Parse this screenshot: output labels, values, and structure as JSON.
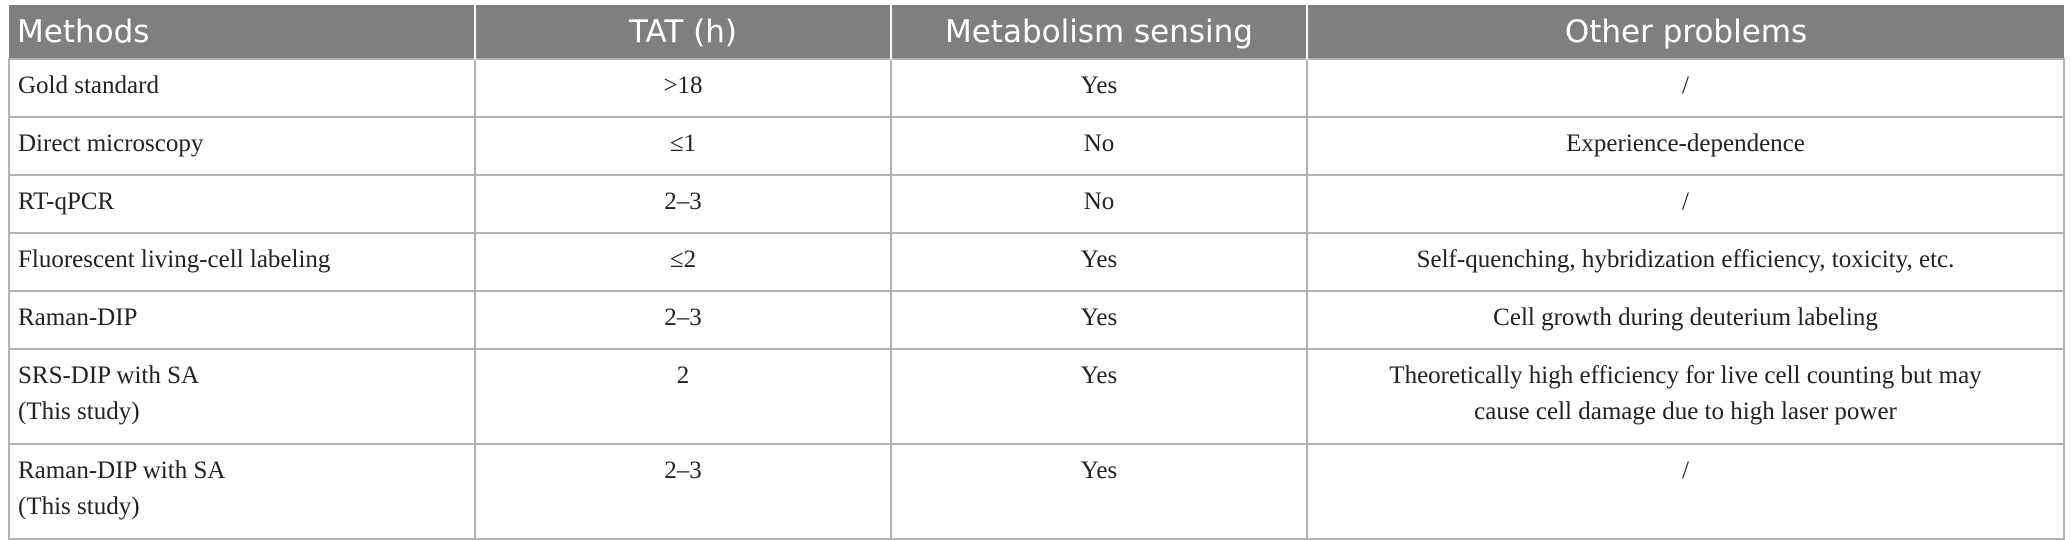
{
  "table": {
    "headers": [
      "Methods",
      "TAT (h)",
      "Metabolism sensing",
      "Other problems"
    ],
    "rows": [
      {
        "method": "Gold standard",
        "method_note": "",
        "tat": ">18",
        "metabolism": "Yes",
        "problems": "/",
        "problems_2": ""
      },
      {
        "method": "Direct microscopy",
        "method_note": "",
        "tat": "≤1",
        "metabolism": "No",
        "problems": "Experience-dependence",
        "problems_2": ""
      },
      {
        "method": "RT-qPCR",
        "method_note": "",
        "tat": "2–3",
        "metabolism": "No",
        "problems": "/",
        "problems_2": ""
      },
      {
        "method": "Fluorescent living-cell labeling",
        "method_note": "",
        "tat": "≤2",
        "metabolism": "Yes",
        "problems": "Self-quenching, hybridization efficiency, toxicity, etc.",
        "problems_2": ""
      },
      {
        "method": "Raman-DIP",
        "method_note": "",
        "tat": "2–3",
        "metabolism": "Yes",
        "problems": "Cell growth during deuterium labeling",
        "problems_2": ""
      },
      {
        "method": "SRS-DIP with SA",
        "method_note": "(This study)",
        "tat": "2",
        "metabolism": "Yes",
        "problems": "Theoretically high efficiency for live cell counting but may",
        "problems_2": "cause cell damage due to high laser power"
      },
      {
        "method": "Raman-DIP with SA",
        "method_note": "(This study)",
        "tat": "2–3",
        "metabolism": "Yes",
        "problems": "/",
        "problems_2": ""
      }
    ]
  }
}
